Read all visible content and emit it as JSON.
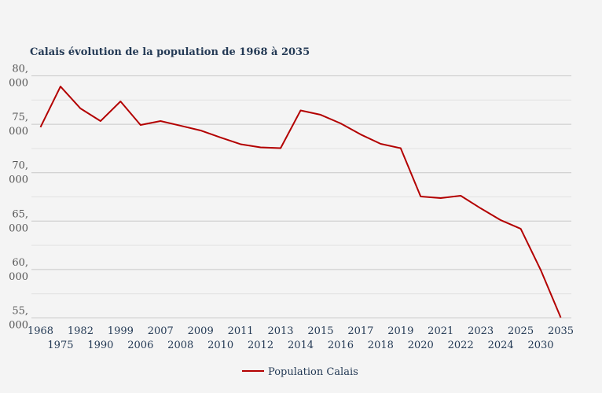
{
  "chart_data": {
    "type": "line",
    "title": "Calais évolution de la population  de 1968 à 2035",
    "xlabel": "",
    "ylabel": "",
    "ylim": [
      55000,
      80000
    ],
    "yticks": [
      {
        "value": 80000,
        "line1": "80,",
        "line2": "000"
      },
      {
        "value": 75000,
        "line1": "75,",
        "line2": "000"
      },
      {
        "value": 70000,
        "line1": "70,",
        "line2": "000"
      },
      {
        "value": 65000,
        "line1": "65,",
        "line2": "000"
      },
      {
        "value": 60000,
        "line1": "60,",
        "line2": "000"
      },
      {
        "value": 55000,
        "line1": "55,",
        "line2": "000"
      }
    ],
    "grid": true,
    "legend_position": "bottom",
    "categories": [
      "1968",
      "1975",
      "1982",
      "1990",
      "1999",
      "2006",
      "2007",
      "2008",
      "2009",
      "2010",
      "2011",
      "2012",
      "2013",
      "2014",
      "2015",
      "2016",
      "2017",
      "2018",
      "2019",
      "2020",
      "2021",
      "2022",
      "2023",
      "2024",
      "2025",
      "2030",
      "2035"
    ],
    "series": [
      {
        "name": "Population Calais",
        "color": "#b30000",
        "values": [
          74700,
          78900,
          76630,
          75330,
          77360,
          74930,
          75330,
          74850,
          74360,
          73630,
          72940,
          72610,
          72530,
          76430,
          75980,
          75090,
          73950,
          72980,
          72530,
          67540,
          67380,
          67620,
          66320,
          65100,
          64210,
          59950,
          55040
        ]
      }
    ]
  }
}
